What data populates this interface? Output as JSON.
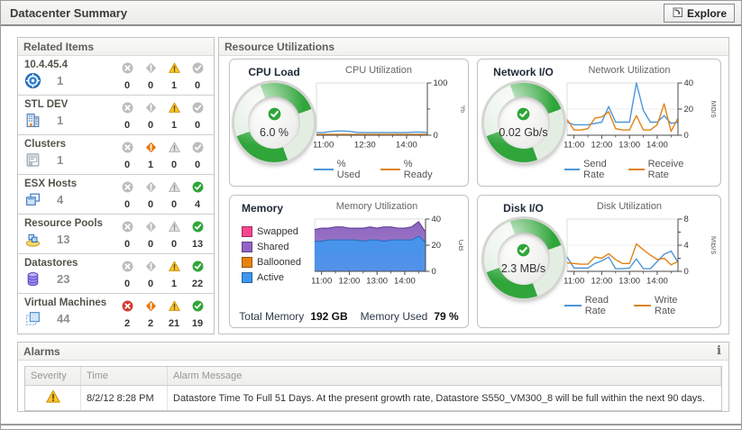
{
  "window": {
    "title": "Datacenter Summary",
    "explore_button": "Explore"
  },
  "related_items": {
    "title": "Related Items",
    "status_types": [
      "fatal",
      "critical",
      "warning",
      "normal"
    ],
    "items": [
      {
        "name": "10.4.45.4",
        "icon": "vcenter-icon",
        "count": "1",
        "counts": [
          0,
          0,
          1,
          0
        ]
      },
      {
        "name": "STL DEV",
        "icon": "datacenter-icon",
        "count": "1",
        "counts": [
          0,
          0,
          1,
          0
        ]
      },
      {
        "name": "Clusters",
        "icon": "cluster-icon",
        "count": "1",
        "counts": [
          0,
          1,
          0,
          0
        ]
      },
      {
        "name": "ESX Hosts",
        "icon": "host-icon",
        "count": "4",
        "counts": [
          0,
          0,
          0,
          4
        ]
      },
      {
        "name": "Resource Pools",
        "icon": "resource-pool-icon",
        "count": "13",
        "counts": [
          0,
          0,
          0,
          13
        ]
      },
      {
        "name": "Datastores",
        "icon": "datastore-icon",
        "count": "23",
        "counts": [
          0,
          0,
          1,
          22
        ]
      },
      {
        "name": "Virtual Machines",
        "icon": "vm-icon",
        "count": "44",
        "counts": [
          2,
          2,
          21,
          19
        ]
      }
    ]
  },
  "resource_utilizations": {
    "title": "Resource Utilizations",
    "quadrants": [
      {
        "id": "cpu",
        "title": "CPU Load",
        "gauge": {
          "value": "6.0 %",
          "status": "normal"
        },
        "chart": {
          "title": "CPU Utilization",
          "type": "line",
          "ylabel": "%",
          "ylim": [
            0,
            100
          ],
          "yticks": [
            {
              "v": 0,
              "label": "0"
            },
            {
              "v": 50
            },
            {
              "v": 100,
              "label": "100"
            }
          ],
          "x_tick_labels": [
            "11:00",
            "12:30",
            "14:00"
          ],
          "x_tick_idx": [
            1,
            7,
            13
          ],
          "x_minor_idx": [
            3,
            5,
            9,
            11,
            15
          ],
          "series": [
            {
              "name": "% Used",
              "color": "#4d96d9",
              "values": [
                5,
                5,
                7,
                8,
                8,
                7,
                5,
                5,
                5,
                5,
                5,
                5,
                5,
                5,
                6,
                6,
                5
              ]
            },
            {
              "name": "% Ready",
              "color": "#e08214",
              "values": [
                1.5,
                1.5,
                1.5,
                1.5,
                1.5,
                1.5,
                1.5,
                1.5,
                1.5,
                1.5,
                1.5,
                1.5,
                1.5,
                1.5,
                1.5,
                1.5,
                1.5
              ]
            }
          ]
        }
      },
      {
        "id": "network",
        "title": "Network I/O",
        "gauge": {
          "value": "0.02 Gb/s",
          "status": "normal"
        },
        "chart": {
          "title": "Network Utilization",
          "type": "line",
          "ylabel": "Mb/s",
          "ylim": [
            0,
            40
          ],
          "yticks": [
            {
              "v": 0,
              "label": "0"
            },
            {
              "v": 20,
              "label": "20"
            },
            {
              "v": 40,
              "label": "40"
            }
          ],
          "x_tick_labels": [
            "11:00",
            "12:00",
            "13:00",
            "14:00"
          ],
          "x_tick_idx": [
            1,
            5,
            9,
            13
          ],
          "x_minor_idx": [
            3,
            7,
            11,
            15
          ],
          "series": [
            {
              "name": "Send Rate",
              "color": "#4d96d9",
              "values": [
                10,
                8,
                8,
                8,
                9,
                10,
                22,
                10,
                10,
                10,
                40,
                19,
                10,
                10,
                15,
                9,
                10
              ]
            },
            {
              "name": "Receive Rate",
              "color": "#e08214",
              "values": [
                12,
                4,
                4,
                5,
                13,
                14,
                18,
                5,
                4,
                4,
                15,
                4,
                4,
                8,
                24,
                3,
                13
              ]
            }
          ]
        }
      },
      {
        "id": "memory",
        "title": "Memory",
        "legend": [
          {
            "label": "Swapped",
            "color": "#f5478f"
          },
          {
            "label": "Shared",
            "color": "#9263c6"
          },
          {
            "label": "Ballooned",
            "color": "#e8820e"
          },
          {
            "label": "Active",
            "color": "#3e95f0"
          }
        ],
        "footer": {
          "total_label": "Total Memory",
          "total_value": "192 GB",
          "used_label": "Memory Used",
          "used_value": "79 %"
        },
        "chart": {
          "title": "Memory Utilization",
          "type": "stacked-area",
          "ylabel": "GB",
          "ylim": [
            0,
            40
          ],
          "yticks": [
            {
              "v": 0,
              "label": "0"
            },
            {
              "v": 20,
              "label": "20"
            },
            {
              "v": 40,
              "label": "40"
            }
          ],
          "x_tick_labels": [
            "11:00",
            "12:00",
            "13:00",
            "14:00"
          ],
          "x_tick_idx": [
            1,
            5,
            9,
            13
          ],
          "x_minor_idx": [
            3,
            7,
            11,
            15
          ],
          "series": [
            {
              "name": "Active",
              "color": "#4495ee",
              "stroke": "#2e6fc0",
              "values": [
                23,
                23,
                24,
                24,
                24,
                24,
                24,
                23,
                24,
                24,
                23,
                24,
                24,
                24,
                24,
                27,
                22
              ]
            },
            {
              "name": "Shared",
              "color": "#8f66c0",
              "stroke": "#64449a",
              "values": [
                32,
                33,
                33,
                34,
                34,
                33,
                33,
                33,
                34,
                33,
                34,
                34,
                33,
                33,
                34,
                38,
                30
              ]
            }
          ]
        }
      },
      {
        "id": "disk",
        "title": "Disk I/O",
        "gauge": {
          "value": "2.3 MB/s",
          "status": "normal"
        },
        "chart": {
          "title": "Disk Utilization",
          "type": "line",
          "ylabel": "MB/s",
          "ylim": [
            0,
            8
          ],
          "yticks": [
            {
              "v": 0,
              "label": "0"
            },
            {
              "v": 2
            },
            {
              "v": 4,
              "label": "4"
            },
            {
              "v": 6
            },
            {
              "v": 8,
              "label": "8"
            }
          ],
          "x_tick_labels": [
            "11:00",
            "12:00",
            "13:00",
            "14:00"
          ],
          "x_tick_idx": [
            1,
            5,
            9,
            13
          ],
          "x_minor_idx": [
            3,
            7,
            11,
            15
          ],
          "series": [
            {
              "name": "Read Rate",
              "color": "#4d96d9",
              "values": [
                2.2,
                0.5,
                0.5,
                0.5,
                1.2,
                1.6,
                2.2,
                0.4,
                0.4,
                0.5,
                1.9,
                0.4,
                0.4,
                1.5,
                2.6,
                3.1,
                1.4
              ]
            },
            {
              "name": "Write Rate",
              "color": "#e08214",
              "values": [
                1.3,
                1.2,
                1.1,
                1.1,
                2.2,
                2.0,
                2.7,
                1.8,
                1.2,
                1.2,
                4.2,
                3.3,
                2.5,
                1.8,
                2.0,
                1.0,
                1.5
              ]
            }
          ]
        }
      }
    ]
  },
  "alarms": {
    "title": "Alarms",
    "info_icon": "i",
    "columns": [
      "Severity",
      "Time",
      "Alarm Message"
    ],
    "rows": [
      {
        "severity": "warning",
        "time": "8/2/12 8:28 PM",
        "message": "Datastore Time To Full 51 Days. At the present growth rate, Datastore S550_VM300_8 will be full within the next 90 days."
      }
    ]
  }
}
